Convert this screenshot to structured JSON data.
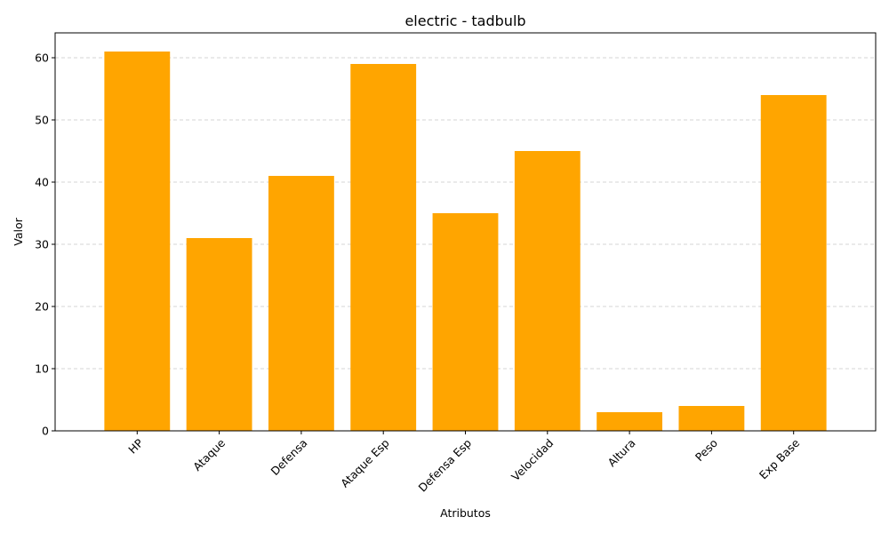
{
  "chart_data": {
    "type": "bar",
    "title": "electric - tadbulb",
    "xlabel": "Atributos",
    "ylabel": "Valor",
    "categories": [
      "HP",
      "Ataque",
      "Defensa",
      "Ataque Esp",
      "Defensa Esp",
      "Velocidad",
      "Altura",
      "Peso",
      "Exp Base"
    ],
    "values": [
      61,
      31,
      41,
      59,
      35,
      45,
      3,
      4,
      54
    ],
    "ylim": [
      0,
      64
    ],
    "yticks": [
      0,
      10,
      20,
      30,
      40,
      50,
      60
    ],
    "grid": "y-dashed",
    "bar_color": "#ffa500",
    "xtick_rotation_deg": 45
  }
}
